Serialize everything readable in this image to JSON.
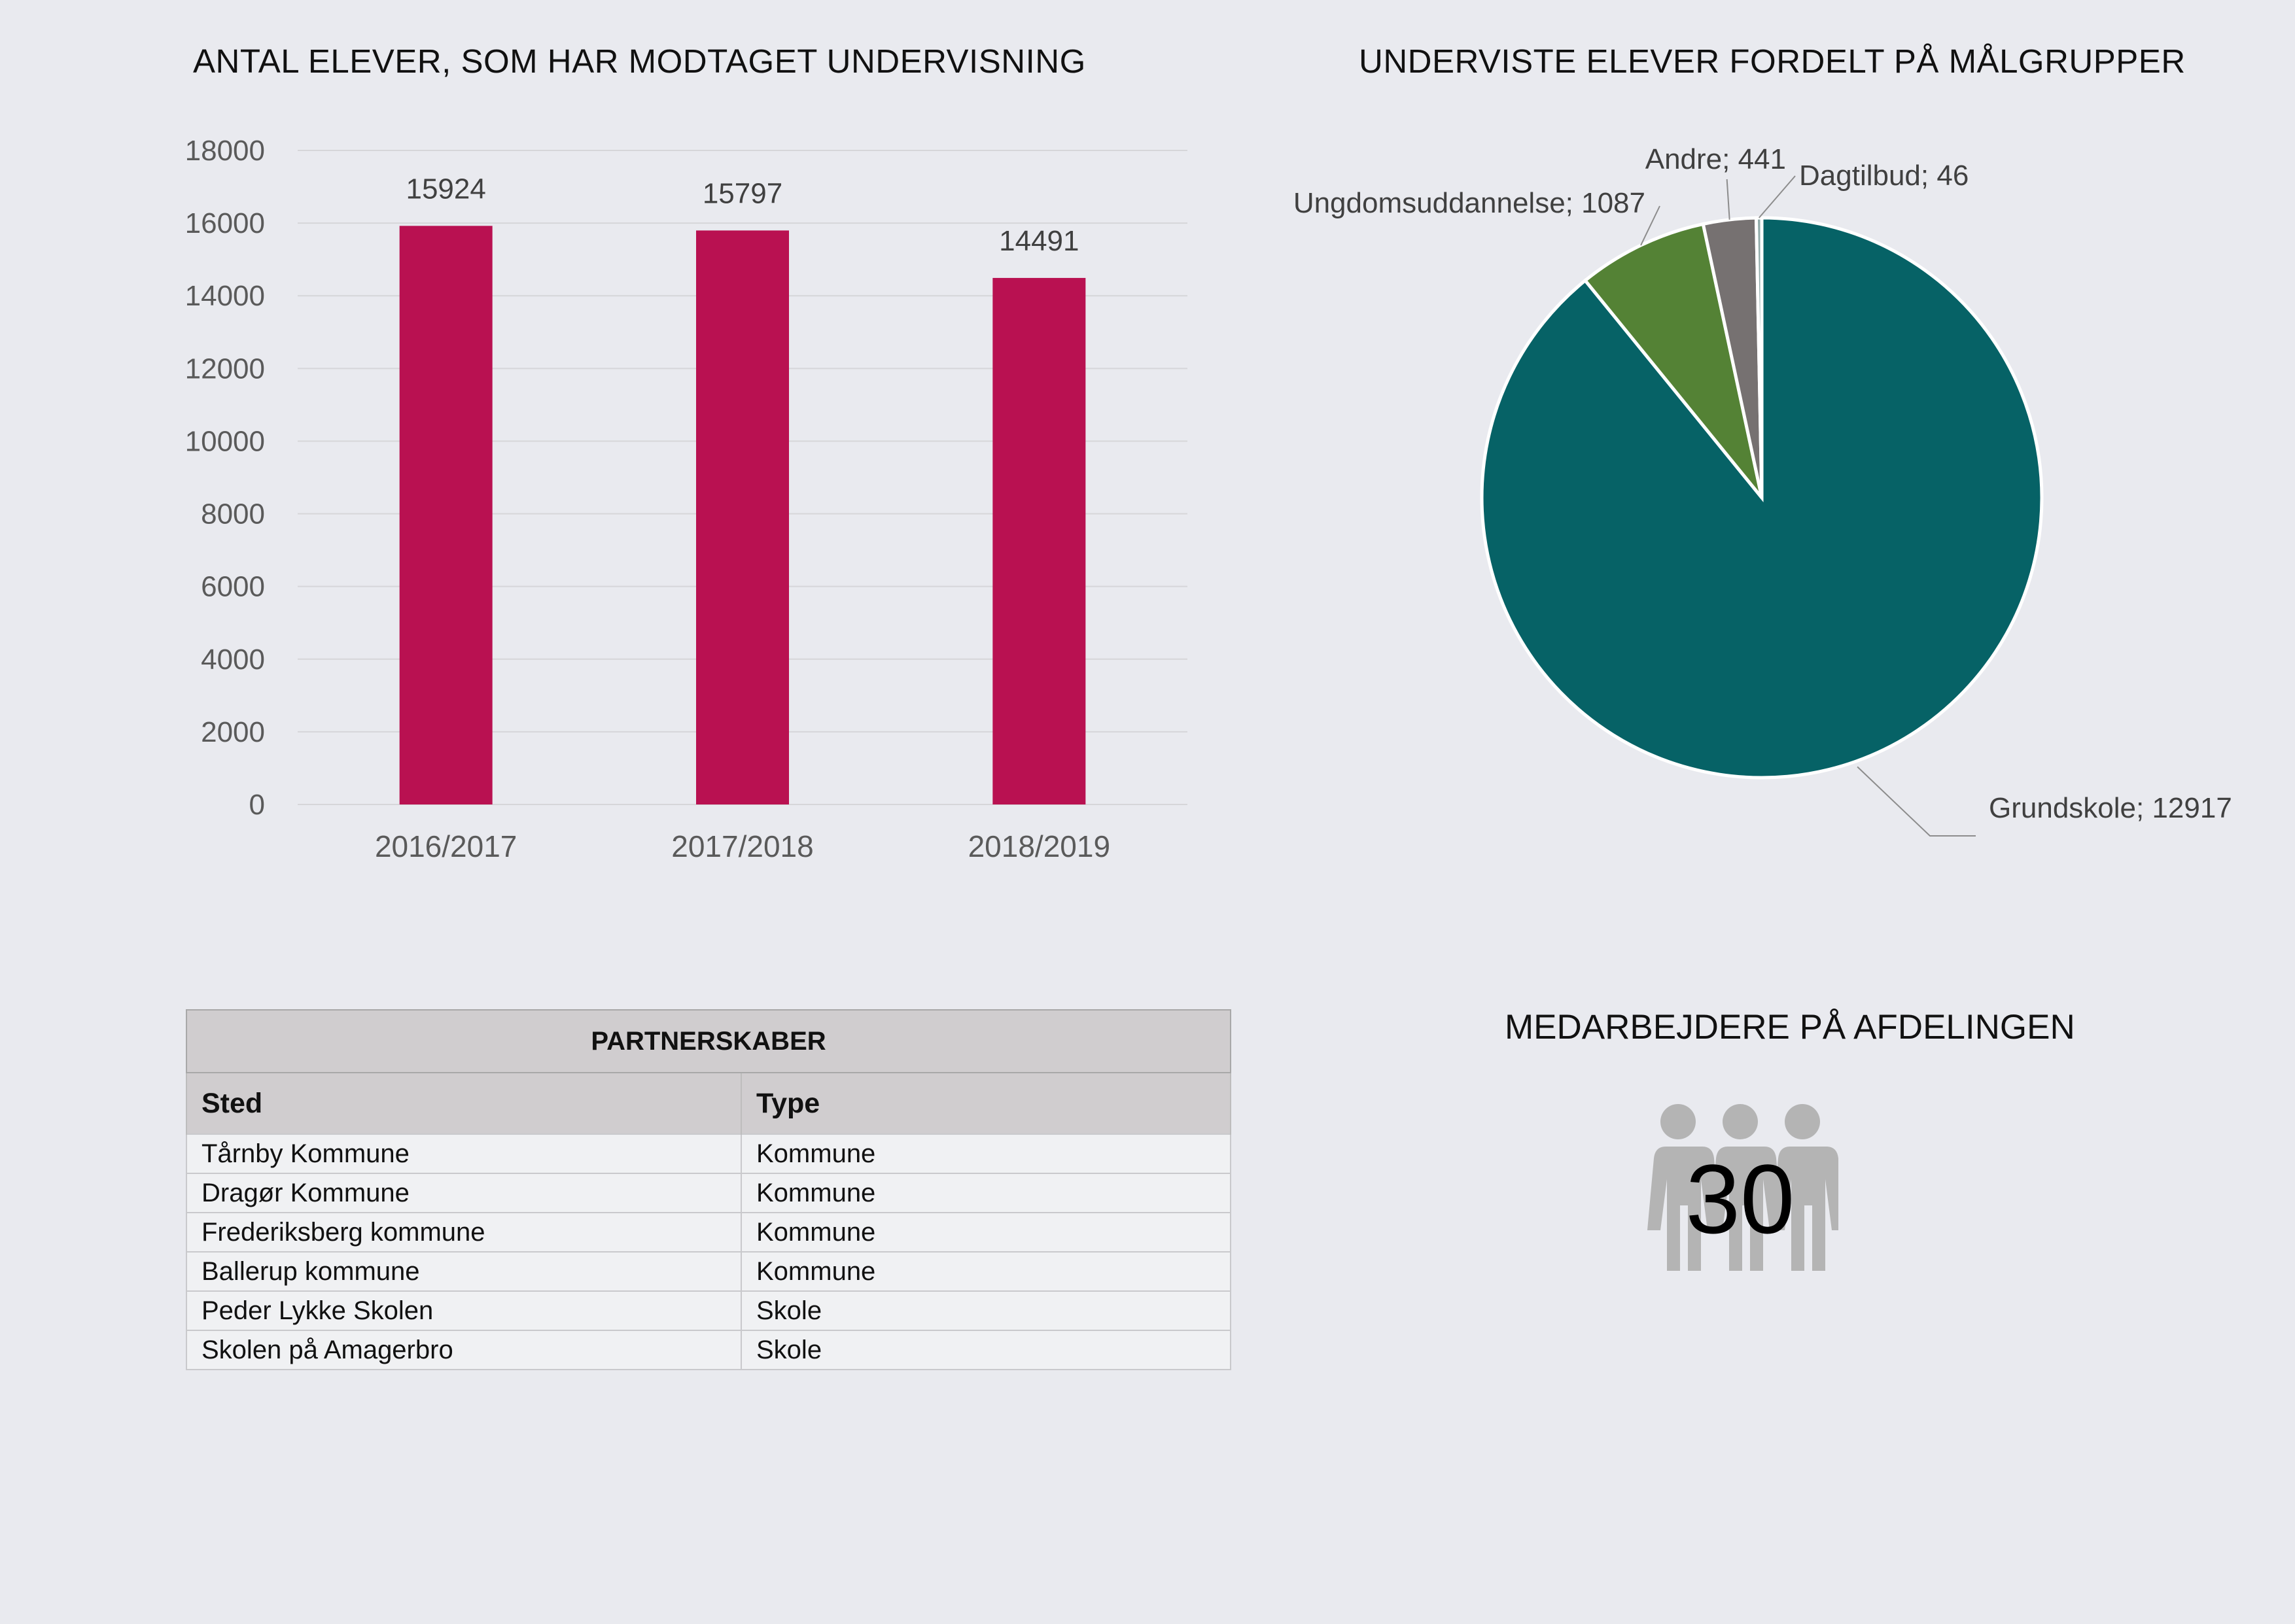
{
  "bar_title": "ANTAL ELEVER, SOM HAR MODTAGET UNDERVISNING",
  "pie_title": "UNDERVISTE ELEVER FORDELT PÅ MÅLGRUPPER",
  "chart_data": [
    {
      "type": "bar",
      "title": "ANTAL ELEVER, SOM HAR MODTAGET UNDERVISNING",
      "categories": [
        "2016/2017",
        "2017/2018",
        "2018/2019"
      ],
      "values": [
        15924,
        15797,
        14491
      ],
      "ylim": [
        0,
        18000
      ],
      "yticks": [
        0,
        2000,
        4000,
        6000,
        8000,
        10000,
        12000,
        14000,
        16000,
        18000
      ],
      "grid": true,
      "color": "#b91151",
      "data_labels": true
    },
    {
      "type": "pie",
      "title": "UNDERVISTE ELEVER FORDELT PÅ MÅLGRUPPER",
      "slices": [
        {
          "label": "Grundskole",
          "value": 12917,
          "color": "#066266",
          "text": "Grundskole; 12917"
        },
        {
          "label": "Ungdomsuddannelse",
          "value": 1087,
          "color": "#548235",
          "text": "Ungdomsuddannelse; 1087"
        },
        {
          "label": "Andre",
          "value": 441,
          "color": "#767171",
          "text": "Andre; 441"
        },
        {
          "label": "Dagtilbud",
          "value": 46,
          "color": "#8faaa8",
          "text": "Dagtilbud; 46"
        }
      ]
    }
  ],
  "partnerships": {
    "title": "PARTNERSKABER",
    "columns": [
      "Sted",
      "Type"
    ],
    "rows": [
      [
        "Tårnby Kommune",
        "Kommune"
      ],
      [
        "Dragør Kommune",
        "Kommune"
      ],
      [
        "Frederiksberg kommune",
        "Kommune"
      ],
      [
        "Ballerup kommune",
        "Kommune"
      ],
      [
        "Peder Lykke Skolen",
        "Skole"
      ],
      [
        "Skolen på Amagerbro",
        "Skole"
      ]
    ]
  },
  "staff": {
    "title": "MEDARBEJDERE PÅ AFDELINGEN",
    "count": "30",
    "icon": "people-group-icon"
  }
}
